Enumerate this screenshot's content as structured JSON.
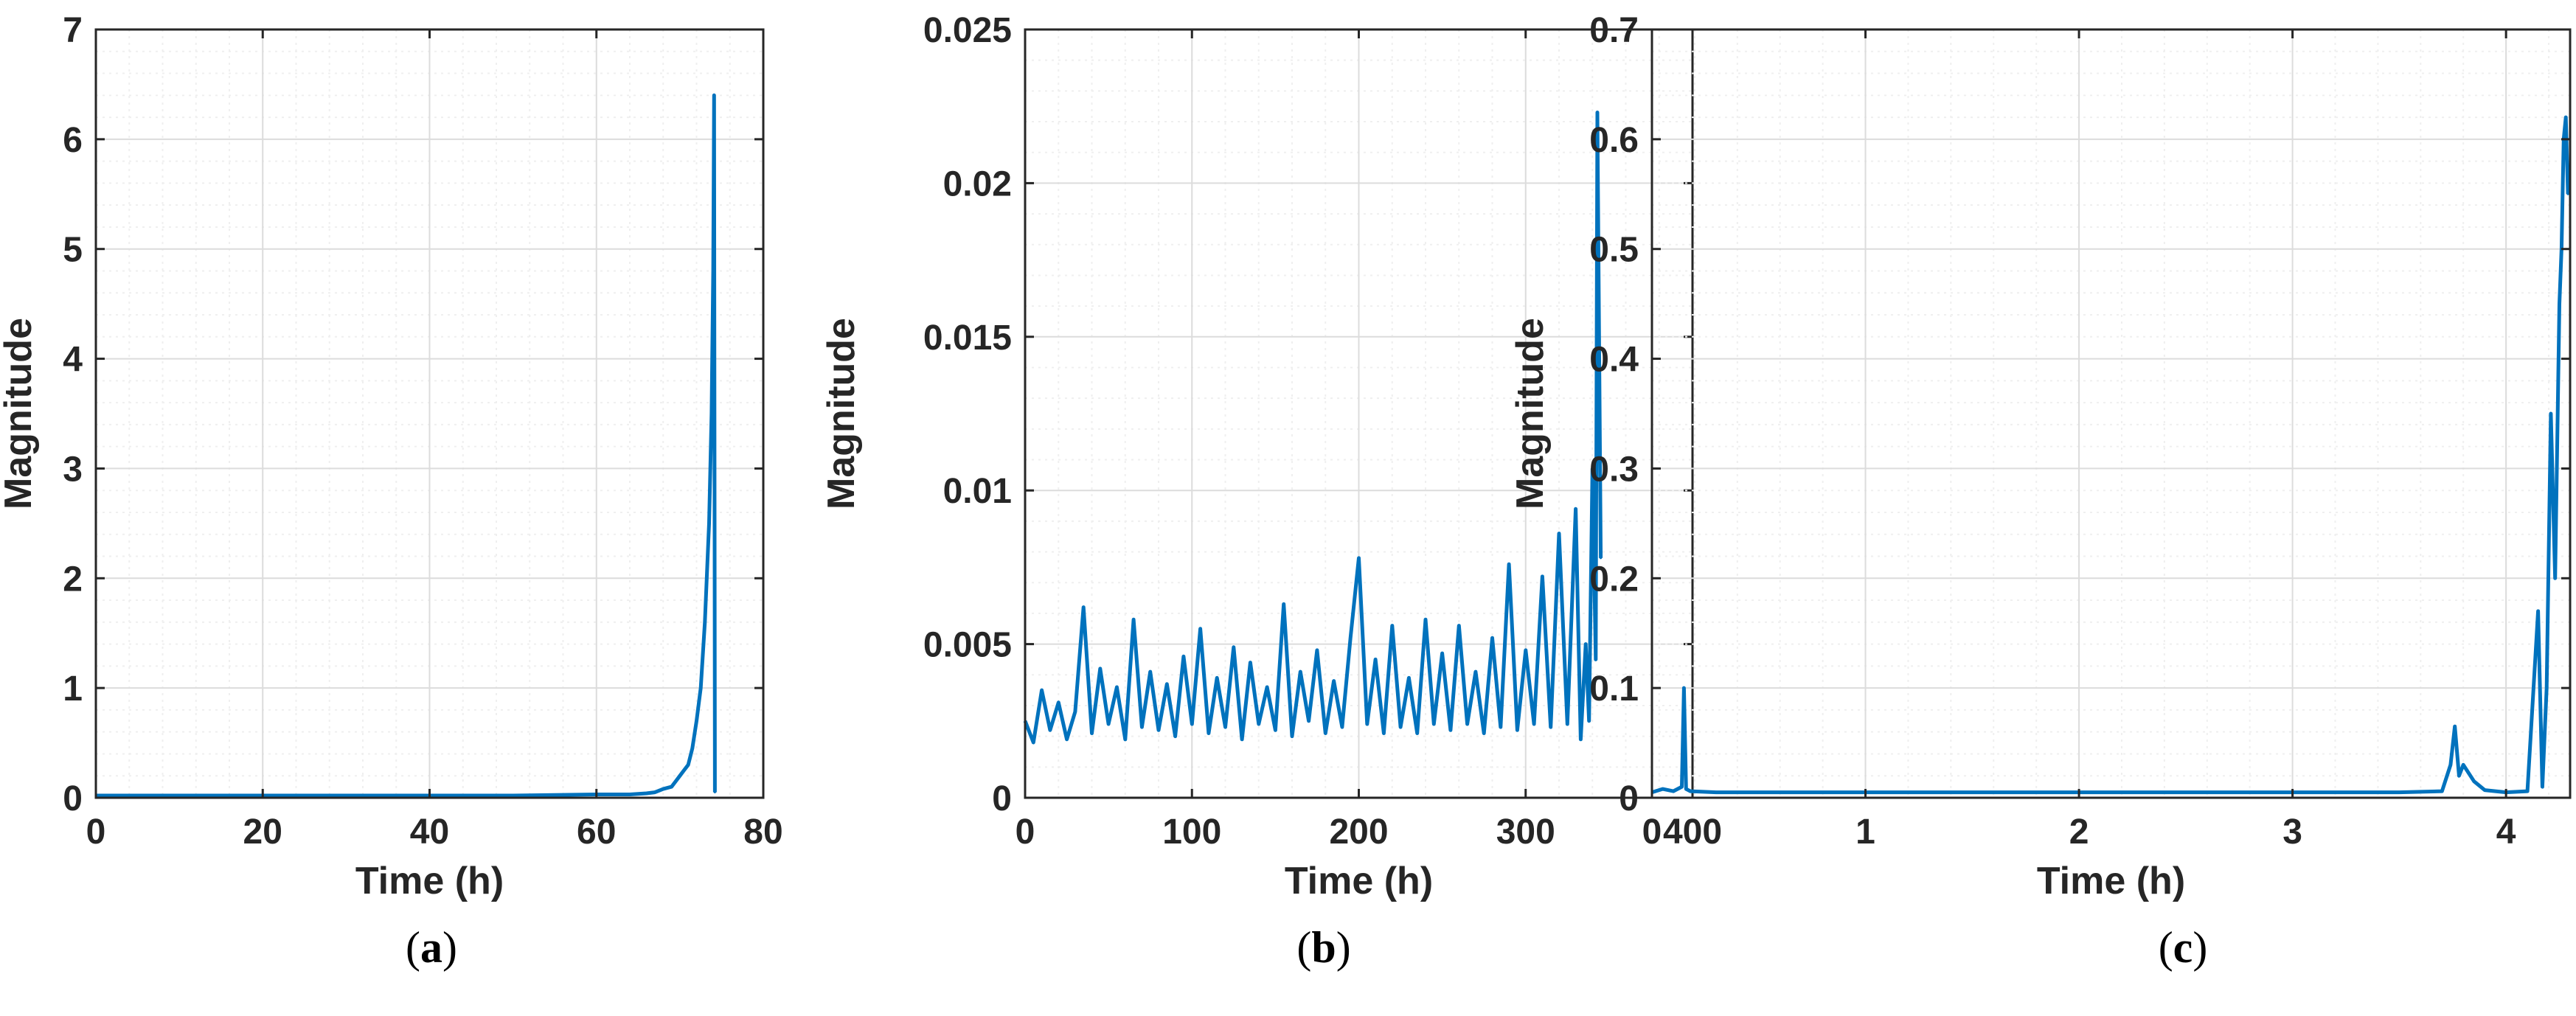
{
  "colors": {
    "series": "#0072BD",
    "axis": "#262626",
    "grid_major": "#dcdcdc",
    "grid_minor": "#efefef"
  },
  "panels": [
    {
      "caption": "a",
      "chart_data": {
        "type": "line",
        "xlabel": "Time (h)",
        "ylabel": "Magnitude",
        "xlim": [
          0,
          80
        ],
        "ylim": [
          0,
          7
        ],
        "xticks": [
          0,
          20,
          40,
          60,
          80
        ],
        "xtick_labels": [
          "0",
          "20",
          "40",
          "60",
          "80"
        ],
        "yticks": [
          0,
          1,
          2,
          3,
          4,
          5,
          6,
          7
        ],
        "ytick_labels": [
          "0",
          "1",
          "2",
          "3",
          "4",
          "5",
          "6",
          "7"
        ],
        "grid": true,
        "series": [
          {
            "color": "#0072BD",
            "x": [
              0,
              10,
              20,
              30,
              40,
              50,
              60,
              64,
              66,
              67,
              68,
              69,
              69.5,
              70,
              70.5,
              71,
              71.5,
              72,
              72.5,
              73,
              73.5,
              73.8,
              74,
              74.1,
              74.2
            ],
            "y": [
              0.02,
              0.02,
              0.02,
              0.02,
              0.02,
              0.02,
              0.03,
              0.03,
              0.04,
              0.05,
              0.08,
              0.1,
              0.15,
              0.2,
              0.25,
              0.3,
              0.45,
              0.7,
              1.0,
              1.6,
              2.5,
              3.5,
              4.8,
              6.4,
              0.05
            ]
          }
        ]
      }
    },
    {
      "caption": "b",
      "chart_data": {
        "type": "line",
        "xlabel": "Time (h)",
        "ylabel": "Magnitude",
        "xlim": [
          0,
          400
        ],
        "ylim": [
          0,
          0.025
        ],
        "xticks": [
          0,
          100,
          200,
          300,
          400
        ],
        "xtick_labels": [
          "0",
          "100",
          "200",
          "300",
          "400"
        ],
        "yticks": [
          0,
          0.005,
          0.01,
          0.015,
          0.02,
          0.025
        ],
        "ytick_labels": [
          "0",
          "0.005",
          "0.01",
          "0.015",
          "0.02",
          "0.025"
        ],
        "grid": true,
        "series": [
          {
            "color": "#0072BD",
            "x": [
              0,
              5,
              10,
              15,
              20,
              25,
              30,
              35,
              40,
              45,
              50,
              55,
              60,
              65,
              70,
              75,
              80,
              85,
              90,
              95,
              100,
              105,
              110,
              115,
              120,
              125,
              130,
              135,
              140,
              145,
              150,
              155,
              160,
              165,
              170,
              175,
              180,
              185,
              190,
              195,
              200,
              205,
              210,
              215,
              220,
              225,
              230,
              235,
              240,
              245,
              250,
              255,
              260,
              265,
              270,
              275,
              280,
              285,
              290,
              295,
              300,
              305,
              310,
              315,
              320,
              325,
              330,
              333,
              336,
              338,
              340,
              342,
              343,
              345
            ],
            "y": [
              0.0025,
              0.0018,
              0.0035,
              0.0022,
              0.0031,
              0.0019,
              0.0028,
              0.0062,
              0.0021,
              0.0042,
              0.0024,
              0.0036,
              0.0019,
              0.0058,
              0.0023,
              0.0041,
              0.0022,
              0.0037,
              0.002,
              0.0046,
              0.0024,
              0.0055,
              0.0021,
              0.0039,
              0.0023,
              0.0049,
              0.0019,
              0.0044,
              0.0024,
              0.0036,
              0.0022,
              0.0063,
              0.002,
              0.0041,
              0.0025,
              0.0048,
              0.0021,
              0.0038,
              0.0023,
              0.0052,
              0.0078,
              0.0024,
              0.0045,
              0.0021,
              0.0056,
              0.0023,
              0.0039,
              0.0021,
              0.0058,
              0.0024,
              0.0047,
              0.0022,
              0.0056,
              0.0024,
              0.0041,
              0.0021,
              0.0052,
              0.0023,
              0.0076,
              0.0022,
              0.0048,
              0.0024,
              0.0072,
              0.0023,
              0.0086,
              0.0024,
              0.0094,
              0.0019,
              0.005,
              0.0025,
              0.0107,
              0.0045,
              0.0223,
              0.0078
            ]
          }
        ]
      }
    },
    {
      "caption": "c",
      "chart_data": {
        "type": "line",
        "xlabel": "Time (h)",
        "ylabel": "Magnitude",
        "xlim": [
          0,
          4.3
        ],
        "ylim": [
          0,
          0.7
        ],
        "xticks": [
          0,
          1,
          2,
          3,
          4
        ],
        "xtick_labels": [
          "0",
          "1",
          "2",
          "3",
          "4"
        ],
        "yticks": [
          0,
          0.1,
          0.2,
          0.3,
          0.4,
          0.5,
          0.6,
          0.7
        ],
        "ytick_labels": [
          "0",
          "0.1",
          "0.2",
          "0.3",
          "0.4",
          "0.5",
          "0.6",
          "0.7"
        ],
        "grid": true,
        "series": [
          {
            "color": "#0072BD",
            "x": [
              0,
              0.05,
              0.1,
              0.14,
              0.15,
              0.16,
              0.18,
              0.3,
              0.5,
              1.0,
              1.5,
              2.0,
              2.5,
              3.0,
              3.5,
              3.7,
              3.74,
              3.76,
              3.78,
              3.8,
              3.85,
              3.9,
              4.0,
              4.1,
              4.15,
              4.17,
              4.19,
              4.21,
              4.23,
              4.25,
              4.26,
              4.27,
              4.28,
              4.29
            ],
            "y": [
              0.005,
              0.008,
              0.006,
              0.01,
              0.1,
              0.008,
              0.006,
              0.005,
              0.005,
              0.005,
              0.005,
              0.005,
              0.005,
              0.005,
              0.005,
              0.006,
              0.03,
              0.065,
              0.02,
              0.03,
              0.015,
              0.007,
              0.005,
              0.006,
              0.17,
              0.01,
              0.1,
              0.35,
              0.2,
              0.45,
              0.5,
              0.6,
              0.62,
              0.55
            ]
          }
        ]
      }
    }
  ]
}
